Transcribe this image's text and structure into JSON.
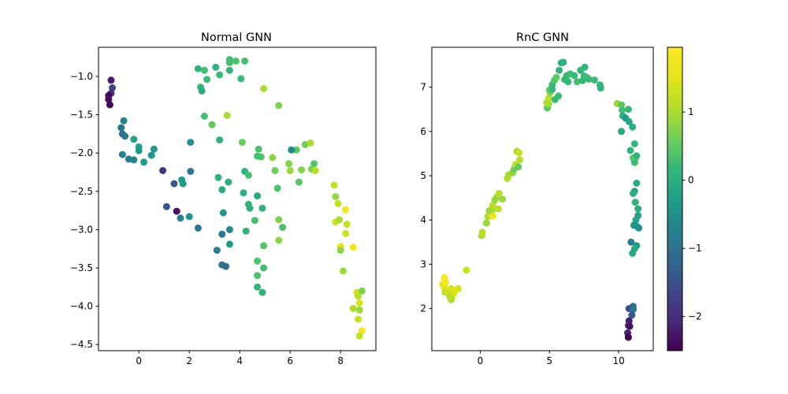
{
  "chart_data": [
    {
      "type": "scatter",
      "title": "Normal GNN",
      "xlim": [
        -1.6,
        9.4
      ],
      "ylim": [
        -4.58,
        -0.62
      ],
      "xticks": [
        0,
        2,
        4,
        6,
        8
      ],
      "yticks": [
        -1.0,
        -1.5,
        -2.0,
        -2.5,
        -3.0,
        -3.5,
        -4.0,
        -4.5
      ],
      "xtick_labels": [
        "0",
        "2",
        "4",
        "6",
        "8"
      ],
      "ytick_labels": [
        "−1.0",
        "−1.5",
        "−2.0",
        "−2.5",
        "−3.0",
        "−3.5",
        "−4.0",
        "−4.5"
      ],
      "points": [
        [
          -1.1,
          -1.05,
          -2.2
        ],
        [
          -1.05,
          -1.15,
          -1.7
        ],
        [
          -1.1,
          -1.22,
          -1.9
        ],
        [
          -1.2,
          -1.25,
          -2.5
        ],
        [
          -1.2,
          -1.3,
          -2.4
        ],
        [
          -1.15,
          -1.37,
          -2.45
        ],
        [
          -0.6,
          -1.58,
          -0.7
        ],
        [
          -0.7,
          -1.67,
          -0.9
        ],
        [
          -0.65,
          -1.75,
          -1.0
        ],
        [
          -0.55,
          -1.78,
          -0.9
        ],
        [
          -0.2,
          -1.82,
          -0.2
        ],
        [
          0.0,
          -1.92,
          -0.15
        ],
        [
          0.0,
          -1.97,
          -0.3
        ],
        [
          0.6,
          -1.95,
          -0.4
        ],
        [
          0.5,
          -2.03,
          -0.4
        ],
        [
          -0.65,
          -2.02,
          -0.7
        ],
        [
          -0.4,
          -2.08,
          -0.8
        ],
        [
          -0.2,
          -2.09,
          -0.7
        ],
        [
          0.2,
          -2.12,
          -0.3
        ],
        [
          0.95,
          -2.23,
          -1.9
        ],
        [
          1.4,
          -2.4,
          -1.4
        ],
        [
          1.7,
          -2.35,
          -0.3
        ],
        [
          1.75,
          -2.4,
          -0.3
        ],
        [
          2.05,
          -2.24,
          -0.9
        ],
        [
          1.1,
          -2.7,
          -1.4
        ],
        [
          1.5,
          -2.76,
          -2.3
        ],
        [
          1.65,
          -2.85,
          -0.8
        ],
        [
          2.0,
          -2.83,
          -0.5
        ],
        [
          2.35,
          -2.98,
          -0.9
        ],
        [
          2.05,
          -1.86,
          -0.5
        ],
        [
          2.35,
          -0.9,
          0.1
        ],
        [
          2.6,
          -0.92,
          0.3
        ],
        [
          2.45,
          -1.14,
          0.15
        ],
        [
          2.5,
          -1.19,
          0.0
        ],
        [
          2.7,
          -1.04,
          0.25
        ],
        [
          3.05,
          -0.88,
          0.1
        ],
        [
          3.2,
          -0.98,
          0.2
        ],
        [
          3.6,
          -0.78,
          0.25
        ],
        [
          3.6,
          -0.82,
          0.3
        ],
        [
          3.85,
          -0.8,
          0.35
        ],
        [
          4.2,
          -0.8,
          0.3
        ],
        [
          3.6,
          -0.92,
          0.15
        ],
        [
          4.05,
          -1.03,
          0.2
        ],
        [
          2.6,
          -1.52,
          0.3
        ],
        [
          2.9,
          -1.63,
          0.5
        ],
        [
          3.5,
          -1.51,
          1.0
        ],
        [
          3.2,
          -1.83,
          0.1
        ],
        [
          4.1,
          -1.86,
          0.55
        ],
        [
          3.15,
          -2.32,
          0.1
        ],
        [
          3.3,
          -2.48,
          -0.1
        ],
        [
          3.55,
          -2.38,
          0.0
        ],
        [
          4.2,
          -2.24,
          0.05
        ],
        [
          4.35,
          -2.29,
          0.3
        ],
        [
          4.15,
          -2.52,
          0.0
        ],
        [
          4.35,
          -2.67,
          0.1
        ],
        [
          4.4,
          -2.72,
          0.05
        ],
        [
          4.7,
          -2.56,
          -0.05
        ],
        [
          4.9,
          -2.72,
          0.1
        ],
        [
          4.6,
          -2.88,
          0.3
        ],
        [
          4.25,
          -3.02,
          0.1
        ],
        [
          3.6,
          -3.0,
          -0.6
        ],
        [
          3.3,
          -3.06,
          -0.9
        ],
        [
          3.1,
          -3.27,
          -0.8
        ],
        [
          3.6,
          -3.19,
          -0.3
        ],
        [
          3.3,
          -3.46,
          -1.0
        ],
        [
          3.45,
          -3.48,
          -1.05
        ],
        [
          3.35,
          -2.78,
          -0.4
        ],
        [
          4.7,
          -3.41,
          0.4
        ],
        [
          4.95,
          -3.5,
          0.25
        ],
        [
          4.7,
          -3.6,
          0.35
        ],
        [
          4.95,
          -3.21,
          0.4
        ],
        [
          4.7,
          -3.75,
          0.15
        ],
        [
          4.9,
          -3.82,
          0.05
        ],
        [
          4.75,
          -1.95,
          0.35
        ],
        [
          4.85,
          -2.05,
          0.4
        ],
        [
          4.7,
          -2.04,
          0.3
        ],
        [
          4.95,
          -1.16,
          1.0
        ],
        [
          5.55,
          -1.38,
          0.7
        ],
        [
          5.3,
          -2.06,
          0.8
        ],
        [
          5.4,
          -2.23,
          0.6
        ],
        [
          5.5,
          -2.46,
          0.35
        ],
        [
          5.55,
          -2.87,
          0.7
        ],
        [
          5.7,
          -2.97,
          0.35
        ],
        [
          5.55,
          -3.14,
          0.8
        ],
        [
          5.95,
          -2.14,
          0.75
        ],
        [
          6.0,
          -2.23,
          0.9
        ],
        [
          6.25,
          -1.96,
          0.45
        ],
        [
          6.05,
          -1.96,
          -0.6
        ],
        [
          6.35,
          -2.38,
          0.45
        ],
        [
          6.45,
          -2.22,
          0.75
        ],
        [
          6.6,
          -1.89,
          0.6
        ],
        [
          6.8,
          -1.87,
          1.0
        ],
        [
          6.95,
          -2.14,
          0.4
        ],
        [
          6.85,
          -2.21,
          0.7
        ],
        [
          7.0,
          -2.23,
          1.1
        ],
        [
          7.75,
          -2.42,
          1.15
        ],
        [
          7.8,
          -2.57,
          0.85
        ],
        [
          7.9,
          -2.66,
          1.2
        ],
        [
          8.2,
          -2.74,
          1.8
        ],
        [
          7.8,
          -2.9,
          1.3
        ],
        [
          7.95,
          -2.87,
          1.0
        ],
        [
          8.25,
          -2.93,
          1.2
        ],
        [
          8.2,
          -3.05,
          1.25
        ],
        [
          8.0,
          -3.22,
          1.6
        ],
        [
          8.5,
          -3.23,
          1.8
        ],
        [
          8.0,
          -3.27,
          0.8
        ],
        [
          8.1,
          -3.54,
          0.9
        ],
        [
          8.65,
          -3.82,
          1.3
        ],
        [
          8.85,
          -3.8,
          0.7
        ],
        [
          8.7,
          -3.87,
          1.1
        ],
        [
          8.75,
          -3.96,
          1.4
        ],
        [
          8.5,
          -4.03,
          1.0
        ],
        [
          8.75,
          -4.05,
          0.9
        ],
        [
          8.7,
          -4.17,
          1.25
        ],
        [
          8.85,
          -4.32,
          1.9
        ],
        [
          8.75,
          -4.39,
          1.2
        ]
      ]
    },
    {
      "type": "scatter",
      "title": "RnC GNN",
      "xlim": [
        -3.5,
        12.5
      ],
      "ylim": [
        1.05,
        7.9
      ],
      "xticks": [
        0,
        5,
        10
      ],
      "yticks": [
        2,
        3,
        4,
        5,
        6,
        7
      ],
      "xtick_labels": [
        "0",
        "5",
        "10"
      ],
      "ytick_labels": [
        "2",
        "3",
        "4",
        "5",
        "6",
        "7"
      ],
      "points": [
        [
          -2.6,
          2.7,
          1.9
        ],
        [
          -2.7,
          2.55,
          1.6
        ],
        [
          -2.5,
          2.6,
          1.8
        ],
        [
          -2.6,
          2.48,
          1.7
        ],
        [
          -2.55,
          2.37,
          1.2
        ],
        [
          -2.3,
          2.35,
          1.3
        ],
        [
          -2.1,
          2.45,
          1.4
        ],
        [
          -2.0,
          2.3,
          1.25
        ],
        [
          -2.1,
          2.2,
          1.0
        ],
        [
          -1.9,
          2.35,
          1.5
        ],
        [
          -1.6,
          2.45,
          1.4
        ],
        [
          -2.2,
          2.27,
          1.1
        ],
        [
          -1.0,
          2.87,
          1.25
        ],
        [
          0.1,
          3.65,
          1.0
        ],
        [
          0.15,
          3.72,
          1.1
        ],
        [
          0.45,
          3.93,
          0.9
        ],
        [
          0.55,
          4.08,
          1.0
        ],
        [
          0.7,
          4.15,
          1.3
        ],
        [
          0.9,
          4.09,
          1.7
        ],
        [
          0.65,
          4.21,
          0.85
        ],
        [
          0.85,
          4.23,
          0.95
        ],
        [
          0.9,
          4.33,
          1.1
        ],
        [
          1.05,
          4.45,
          0.9
        ],
        [
          1.2,
          4.52,
          0.85
        ],
        [
          1.35,
          4.6,
          1.1
        ],
        [
          1.6,
          4.47,
          0.9
        ],
        [
          1.3,
          4.25,
          1.15
        ],
        [
          1.95,
          4.94,
          1.05
        ],
        [
          2.05,
          5.02,
          1.0
        ],
        [
          2.35,
          5.07,
          0.85
        ],
        [
          2.45,
          5.15,
          0.6
        ],
        [
          2.55,
          5.25,
          1.1
        ],
        [
          2.75,
          5.2,
          0.55
        ],
        [
          2.65,
          5.55,
          1.0
        ],
        [
          2.8,
          5.52,
          1.2
        ],
        [
          2.85,
          5.36,
          1.05
        ],
        [
          4.85,
          6.53,
          0.45
        ],
        [
          4.95,
          6.62,
          0.9
        ],
        [
          4.8,
          6.65,
          1.0
        ],
        [
          4.95,
          6.75,
          1.1
        ],
        [
          5.05,
          6.88,
          0.7
        ],
        [
          5.0,
          6.94,
          0.55
        ],
        [
          5.2,
          6.95,
          0.2
        ],
        [
          5.2,
          7.05,
          0.15
        ],
        [
          5.35,
          7.15,
          0.4
        ],
        [
          5.5,
          7.22,
          0.5
        ],
        [
          5.4,
          6.72,
          0.2
        ],
        [
          5.65,
          6.8,
          0.25
        ],
        [
          5.7,
          7.38,
          0.1
        ],
        [
          5.85,
          7.55,
          0.05
        ],
        [
          6.0,
          7.56,
          0.05
        ],
        [
          6.1,
          7.17,
          0.15
        ],
        [
          6.25,
          7.26,
          0.2
        ],
        [
          6.5,
          7.3,
          0.25
        ],
        [
          6.35,
          7.12,
          0.2
        ],
        [
          6.8,
          7.26,
          0.2
        ],
        [
          7.0,
          7.12,
          0.3
        ],
        [
          7.25,
          7.38,
          0.1
        ],
        [
          7.4,
          7.15,
          0.1
        ],
        [
          7.55,
          7.45,
          0.15
        ],
        [
          7.5,
          7.25,
          0.2
        ],
        [
          7.7,
          7.22,
          0.25
        ],
        [
          7.85,
          7.18,
          0.2
        ],
        [
          8.25,
          7.16,
          0.2
        ],
        [
          8.65,
          7.05,
          0.15
        ],
        [
          8.7,
          6.98,
          0.1
        ],
        [
          9.9,
          6.63,
          0.9
        ],
        [
          10.2,
          6.6,
          0.5
        ],
        [
          10.25,
          6.48,
          0.3
        ],
        [
          10.3,
          6.35,
          0.05
        ],
        [
          10.5,
          6.3,
          -0.3
        ],
        [
          10.2,
          6.0,
          -0.1
        ],
        [
          10.7,
          6.5,
          0.15
        ],
        [
          10.75,
          6.22,
          -0.1
        ],
        [
          11.0,
          6.1,
          0.0
        ],
        [
          10.85,
          5.57,
          0.1
        ],
        [
          11.15,
          5.72,
          0.15
        ],
        [
          11.05,
          5.4,
          0.4
        ],
        [
          11.2,
          5.38,
          0.55
        ],
        [
          11.3,
          5.45,
          0.1
        ],
        [
          11.15,
          5.3,
          0.25
        ],
        [
          11.3,
          4.83,
          -0.1
        ],
        [
          11.15,
          4.65,
          -0.2
        ],
        [
          11.05,
          4.6,
          0.05
        ],
        [
          11.2,
          4.4,
          0.1
        ],
        [
          11.4,
          4.25,
          0.0
        ],
        [
          11.4,
          4.1,
          -0.2
        ],
        [
          11.25,
          4.0,
          -0.15
        ],
        [
          11.1,
          3.88,
          -0.45
        ],
        [
          11.3,
          3.86,
          -0.3
        ],
        [
          11.45,
          3.82,
          -0.5
        ],
        [
          10.9,
          3.5,
          -0.8
        ],
        [
          11.3,
          3.42,
          -0.3
        ],
        [
          11.15,
          3.35,
          -0.05
        ],
        [
          11.0,
          3.25,
          -0.1
        ],
        [
          11.05,
          2.05,
          -1.1
        ],
        [
          10.75,
          2.0,
          -1.6
        ],
        [
          11.05,
          1.98,
          -0.95
        ],
        [
          10.95,
          1.85,
          -1.4
        ],
        [
          10.75,
          1.72,
          -2.2
        ],
        [
          10.7,
          1.62,
          -1.9
        ],
        [
          10.8,
          1.6,
          -2.3
        ],
        [
          10.65,
          1.45,
          -2.1
        ],
        [
          10.7,
          1.35,
          -2.5
        ]
      ]
    }
  ],
  "colorbar": {
    "min": -2.5,
    "max": 1.95,
    "ticks": [
      1,
      0,
      -1,
      -2
    ],
    "tick_labels": [
      "1",
      "0",
      "−1",
      "−2"
    ]
  }
}
